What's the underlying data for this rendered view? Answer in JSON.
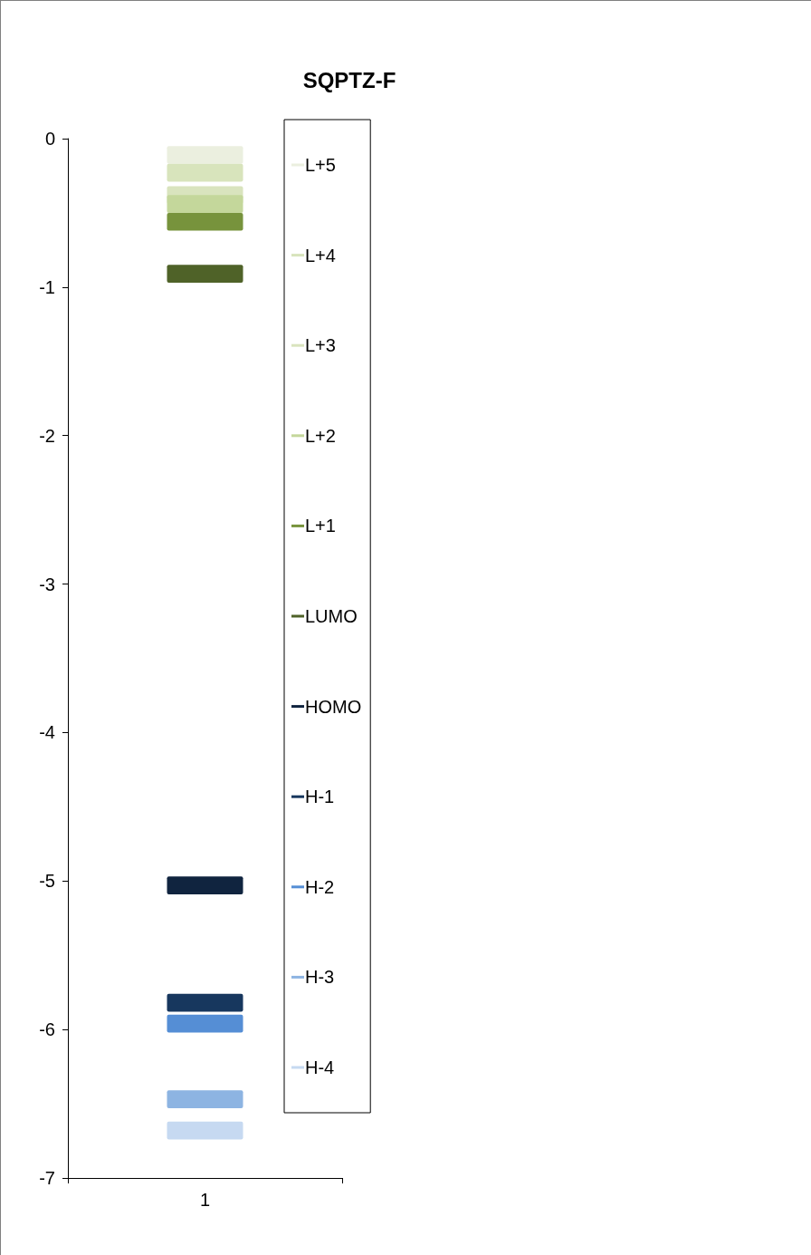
{
  "chart_data": {
    "type": "bar",
    "title": "SQPTZ-F",
    "categories": [
      "1"
    ],
    "grid": false,
    "legend": "right",
    "ylim": [
      -7,
      0
    ],
    "yticks": [
      -7,
      -6,
      -5,
      -4,
      -3,
      -2,
      -1,
      0
    ],
    "series": [
      {
        "name": "L+5",
        "color": "#ebefdf",
        "base": [
          -0.17
        ],
        "values": [
          0.12
        ]
      },
      {
        "name": "L+4",
        "color": "#d8e4bc",
        "base": [
          -0.29
        ],
        "values": [
          0.12
        ]
      },
      {
        "name": "L+3",
        "color": "#d9e4be",
        "base": [
          -0.44
        ],
        "values": [
          0.12
        ]
      },
      {
        "name": "L+2",
        "color": "#c4d79b",
        "base": [
          -0.5
        ],
        "values": [
          0.12
        ]
      },
      {
        "name": "L+1",
        "color": "#77933c",
        "base": [
          -0.62
        ],
        "values": [
          0.12
        ]
      },
      {
        "name": "LUMO",
        "color": "#4f6228",
        "base": [
          -0.97
        ],
        "values": [
          0.12
        ]
      },
      {
        "name": "HOMO",
        "color": "#10243f",
        "base": [
          -5.09
        ],
        "values": [
          0.12
        ]
      },
      {
        "name": "H-1",
        "color": "#17375e",
        "base": [
          -5.88
        ],
        "values": [
          0.12
        ]
      },
      {
        "name": "H-2",
        "color": "#558ed5",
        "base": [
          -6.02
        ],
        "values": [
          0.12
        ]
      },
      {
        "name": "H-3",
        "color": "#8db4e2",
        "base": [
          -6.53
        ],
        "values": [
          0.12
        ]
      },
      {
        "name": "H-4",
        "color": "#c6d9f1",
        "base": [
          -6.74
        ],
        "values": [
          0.12
        ]
      }
    ]
  }
}
